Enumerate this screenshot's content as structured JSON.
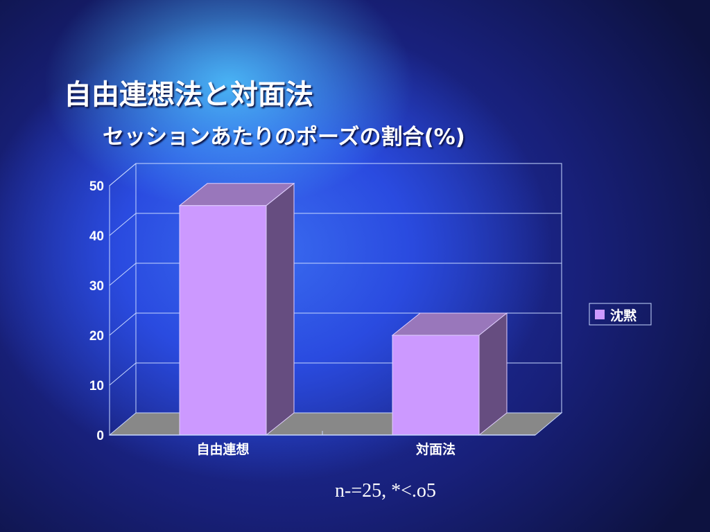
{
  "slide": {
    "title": "自由連想法と対面法",
    "note": "n-=25, *<.o5"
  },
  "chart_data": {
    "type": "bar",
    "title": "セッションあたりのポーズの割合(%)",
    "categories": [
      "自由連想",
      "対面法"
    ],
    "series": [
      {
        "name": "沈黙",
        "values": [
          46,
          20
        ],
        "color": "#cc99ff"
      }
    ],
    "ylim": [
      0,
      50
    ],
    "yticks": [
      "0",
      "10",
      "20",
      "30",
      "40",
      "50"
    ],
    "grid": true,
    "legend": "right",
    "style": "3d-column"
  }
}
